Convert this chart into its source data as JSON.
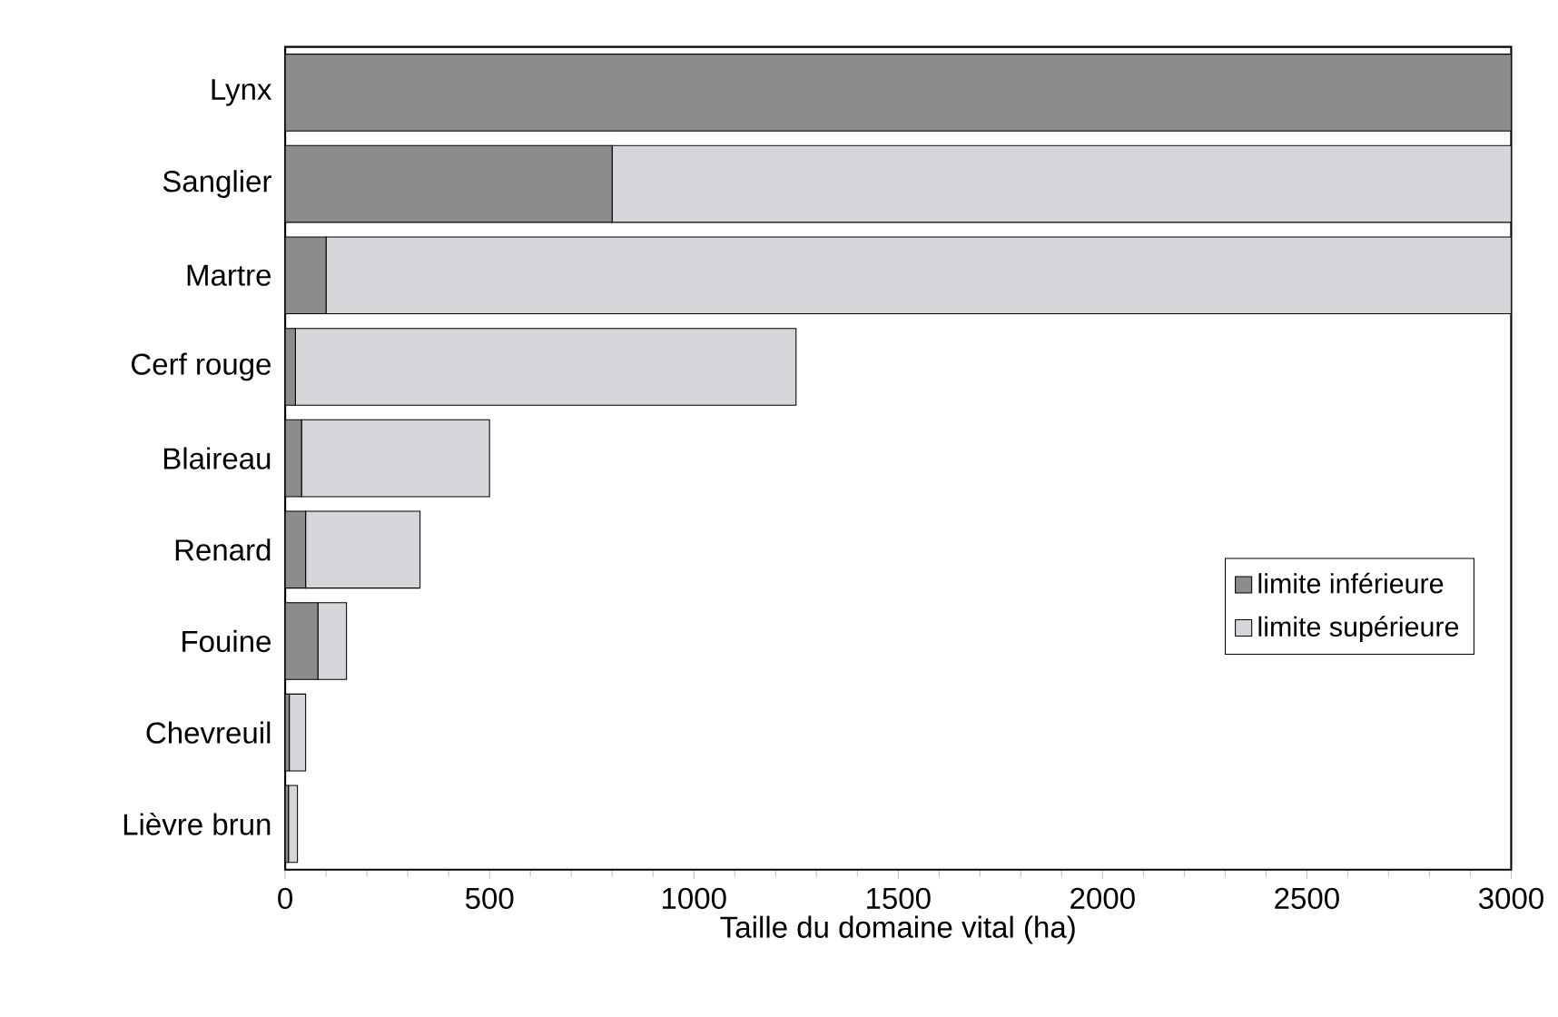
{
  "chart_data": {
    "type": "bar",
    "orientation": "horizontal",
    "stacked": true,
    "xlabel": "Taille du domaine vital (ha)",
    "categories": [
      "Lynx",
      "Sanglier",
      "Martre",
      "Cerf rouge",
      "Blaireau",
      "Renard",
      "Fouine",
      "Chevreuil",
      "Lièvre brun"
    ],
    "series": [
      {
        "name": "limite inférieure",
        "color": "#8c8c8c",
        "values": [
          3000,
          800,
          100,
          25,
          40,
          50,
          80,
          10,
          8
        ]
      },
      {
        "name": "limite supérieure",
        "color": "#d6d6da",
        "values": [
          0,
          2200,
          2900,
          1225,
          460,
          280,
          70,
          40,
          22
        ]
      }
    ],
    "xlim": [
      0,
      3000
    ],
    "xticks": [
      0,
      500,
      1000,
      1500,
      2000,
      2500,
      3000
    ],
    "legend": "right"
  }
}
